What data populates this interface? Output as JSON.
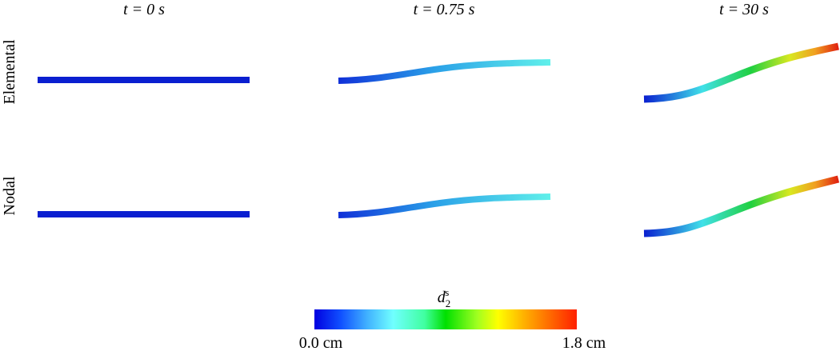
{
  "columns": [
    "t = 0 s",
    "t = 0.75 s",
    "t = 30 s"
  ],
  "rows": [
    "Elemental",
    "Nodal"
  ],
  "colorbar": {
    "label": {
      "base": "d",
      "sub": "2",
      "sup": "s"
    },
    "min_label": "0.0 cm",
    "max_label": "1.8 cm"
  }
}
